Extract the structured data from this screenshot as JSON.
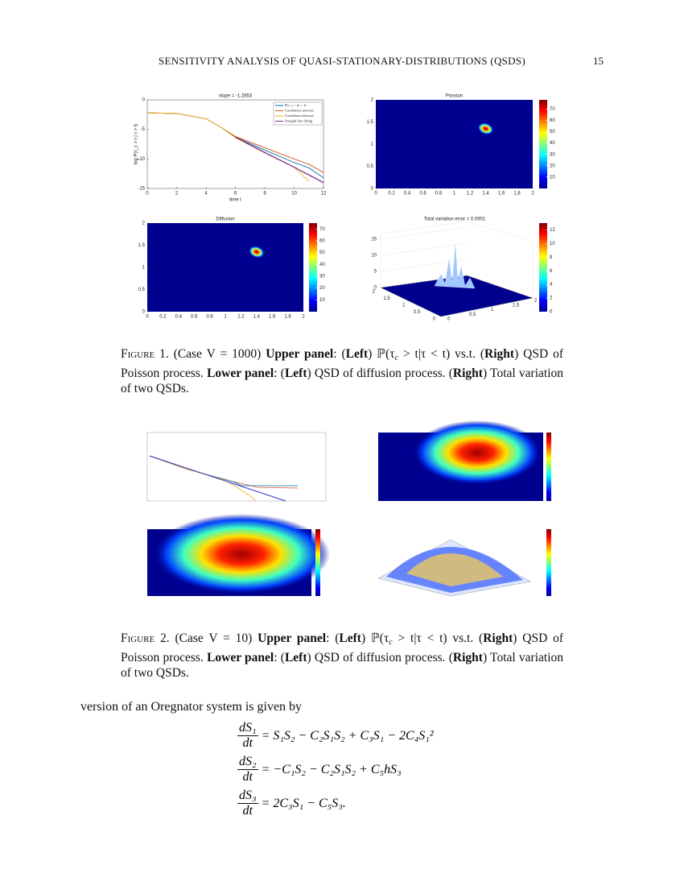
{
  "header": {
    "title": "SENSITIVITY ANALYSIS OF QUASI-STATIONARY-DISTRIBUTIONS (QSDS)",
    "page": "15"
  },
  "figure1": {
    "panels": [
      {
        "type": "line",
        "title": "slope = -1.2853",
        "xlabel": "time t",
        "ylabel": "log P(τ_c > t | τ > t)",
        "xlim": [
          0,
          12
        ],
        "ylim": [
          -15,
          0
        ],
        "xticks": [
          0,
          2,
          4,
          6,
          8,
          10,
          12
        ],
        "yticks": [
          0,
          -5,
          -10,
          -15
        ],
        "x": [
          0,
          2,
          4,
          5,
          6,
          8,
          10,
          11,
          12
        ],
        "series": [
          {
            "name": "P(τ_c > t|τ > t)",
            "color": "#0072bd",
            "values": [
              -2.2,
              -2.3,
              -3.2,
              -4.6,
              -6.3,
              -8.5,
              -10.6,
              -11.5,
              -13.2
            ]
          },
          {
            "name": "Confidence interval",
            "color": "#d95319",
            "values": [
              -2.2,
              -2.3,
              -3.2,
              -4.6,
              -6.2,
              -8.1,
              -10.0,
              -10.9,
              -12.3
            ]
          },
          {
            "name": "Confidence interval",
            "color": "#edb120",
            "values": [
              -2.2,
              -2.3,
              -3.2,
              -4.6,
              -6.4,
              -9.0,
              -11.4,
              -13.8,
              null
            ]
          },
          {
            "name": "Straight line fitting",
            "color": "#7e2f8e",
            "values": [
              null,
              null,
              null,
              null,
              -6.3,
              -8.9,
              -11.4,
              -12.7,
              -14.0
            ]
          }
        ]
      },
      {
        "type": "heatmap",
        "title": "Possion",
        "xlim": [
          0,
          2
        ],
        "ylim": [
          0,
          2
        ],
        "xticks": [
          0,
          0.2,
          0.4,
          0.6,
          0.8,
          1,
          1.2,
          1.4,
          1.6,
          1.8,
          2
        ],
        "yticks": [
          0,
          0.5,
          1,
          1.5,
          2
        ],
        "peak": [
          1.4,
          1.35
        ],
        "clim": [
          0,
          78
        ],
        "cticks": [
          10,
          20,
          30,
          40,
          50,
          60,
          70
        ]
      },
      {
        "type": "heatmap",
        "title": "Diffusion",
        "xlim": [
          0,
          2
        ],
        "ylim": [
          0,
          2
        ],
        "xticks": [
          0,
          0.2,
          0.4,
          0.6,
          0.8,
          1,
          1.2,
          1.4,
          1.6,
          1.8,
          2
        ],
        "yticks": [
          0,
          0.5,
          1,
          1.5,
          2
        ],
        "peak": [
          1.4,
          1.35
        ],
        "clim": [
          0,
          75
        ],
        "cticks": [
          10,
          20,
          30,
          40,
          50,
          60,
          70
        ]
      },
      {
        "type": "surface",
        "title": "Total variation error = 0.0901",
        "zlim": [
          0,
          15
        ],
        "zticks": [
          0,
          5,
          10,
          15
        ],
        "yticks": [
          2,
          1.5,
          1,
          0.5,
          0
        ],
        "xticks": [
          0,
          0.5,
          1,
          1.5,
          2
        ],
        "clim": [
          0,
          13
        ],
        "cticks": [
          0,
          2,
          4,
          6,
          8,
          10,
          12
        ]
      }
    ],
    "caption": [
      {
        "text": "Figure 1.",
        "style": "caps"
      },
      {
        "text": " (Case V = 1000) ",
        "style": "plain"
      },
      {
        "text": "Upper panel",
        "style": "bold"
      },
      {
        "text": ": (",
        "style": "plain"
      },
      {
        "text": "Left",
        "style": "bold"
      },
      {
        "text": ") ℙ(τ",
        "style": "plain"
      },
      {
        "text": "c",
        "style": "sub"
      },
      {
        "text": " > t|τ < t) vs.t. (",
        "style": "plain"
      },
      {
        "text": "Right",
        "style": "bold"
      },
      {
        "text": ") QSD of Poisson process. ",
        "style": "plain"
      },
      {
        "text": "Lower panel",
        "style": "bold"
      },
      {
        "text": ": (",
        "style": "plain"
      },
      {
        "text": "Left",
        "style": "bold"
      },
      {
        "text": ") QSD of diffusion process. (",
        "style": "plain"
      },
      {
        "text": "Right",
        "style": "bold"
      },
      {
        "text": ") Total variation of two QSDs.",
        "style": "plain"
      }
    ]
  },
  "figure2": {
    "caption": [
      {
        "text": "Figure 2.",
        "style": "caps"
      },
      {
        "text": " (Case V = 10) ",
        "style": "plain"
      },
      {
        "text": "Upper panel",
        "style": "bold"
      },
      {
        "text": ": (",
        "style": "plain"
      },
      {
        "text": "Left",
        "style": "bold"
      },
      {
        "text": ") ℙ(τ",
        "style": "plain"
      },
      {
        "text": "c",
        "style": "sub"
      },
      {
        "text": " > t|τ < t) vs.t. (",
        "style": "plain"
      },
      {
        "text": "Right",
        "style": "bold"
      },
      {
        "text": ") QSD of Poisson process. ",
        "style": "plain"
      },
      {
        "text": "Lower panel",
        "style": "bold"
      },
      {
        "text": ": (",
        "style": "plain"
      },
      {
        "text": "Left",
        "style": "bold"
      },
      {
        "text": ") QSD of diffusion process. (",
        "style": "plain"
      },
      {
        "text": "Right",
        "style": "bold"
      },
      {
        "text": ") Total variation of two QSDs.",
        "style": "plain"
      }
    ]
  },
  "body": {
    "text": "version of an Oregnator system is given by",
    "equations": [
      {
        "num": "dS₁",
        "den": "dt",
        "rhs": "= S₁S₂ − C₂S₁S₂ + C₃S₁ − 2C₄S₁²"
      },
      {
        "num": "dS₂",
        "den": "dt",
        "rhs": "= −C₁S₂ − C₂S₁S₂ + C₅hS₃"
      },
      {
        "num": "dS₃",
        "den": "dt",
        "rhs": "= 2C₃S₁ − C₅S₃."
      }
    ]
  }
}
